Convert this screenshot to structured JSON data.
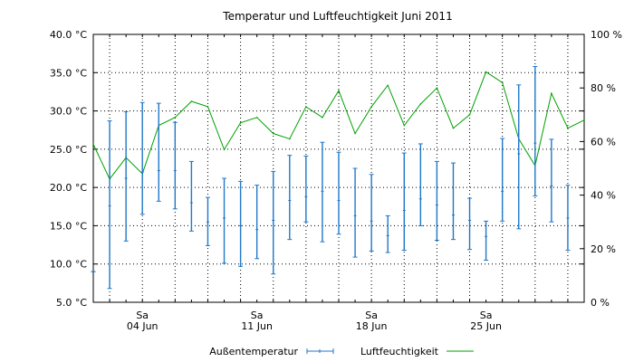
{
  "chart_data": {
    "type": "line",
    "title": "Temperatur und Luftfeuchtigkeit Juni 2011",
    "x": {
      "label": "",
      "first_day": 1,
      "last_day": 31,
      "weekday_ticks": [
        {
          "day": 4,
          "label": "Sa"
        },
        {
          "day": 11,
          "label": "Sa"
        },
        {
          "day": 18,
          "label": "Sa"
        },
        {
          "day": 25,
          "label": "Sa"
        }
      ],
      "date_ticks": [
        {
          "day": 4,
          "label": "04 Jun"
        },
        {
          "day": 11,
          "label": "11 Jun"
        },
        {
          "day": 18,
          "label": "18 Jun"
        },
        {
          "day": 25,
          "label": "25 Jun"
        }
      ]
    },
    "y_left": {
      "unit": "°C",
      "ylim": [
        5,
        40
      ],
      "ticks": [
        {
          "value": 5,
          "label": "5.0 °C"
        },
        {
          "value": 10,
          "label": "10.0 °C"
        },
        {
          "value": 15,
          "label": "15.0 °C"
        },
        {
          "value": 20,
          "label": "20.0 °C"
        },
        {
          "value": 25,
          "label": "25.0 °C"
        },
        {
          "value": 30,
          "label": "30.0 °C"
        },
        {
          "value": 35,
          "label": "35.0 °C"
        },
        {
          "value": 40,
          "label": "40.0 °C"
        }
      ]
    },
    "y_right": {
      "unit": "%",
      "ylim": [
        0,
        100
      ],
      "ticks": [
        {
          "value": 0,
          "label": "0 %"
        },
        {
          "value": 20,
          "label": "20 %"
        },
        {
          "value": 40,
          "label": "40 %"
        },
        {
          "value": 60,
          "label": "60 %"
        },
        {
          "value": 80,
          "label": "80 %"
        },
        {
          "value": 100,
          "label": "100 %"
        }
      ]
    },
    "grid": true,
    "legend_position": "bottom",
    "series": [
      {
        "name": "Außentemperatur",
        "type": "errorbar",
        "axis": "left",
        "color": "#1f78c8",
        "days": [
          1,
          2,
          3,
          4,
          5,
          6,
          7,
          8,
          9,
          10,
          11,
          12,
          13,
          14,
          15,
          16,
          17,
          18,
          19,
          20,
          21,
          22,
          23,
          24,
          25,
          26,
          27,
          28,
          29,
          30
        ],
        "min": [
          9.0,
          6.8,
          13.0,
          16.5,
          18.2,
          17.2,
          14.3,
          12.4,
          10.1,
          9.7,
          10.7,
          8.7,
          13.2,
          15.5,
          12.9,
          13.9,
          10.9,
          11.7,
          11.5,
          11.8,
          15.0,
          13.1,
          13.2,
          11.9,
          10.5,
          15.6,
          14.6,
          18.9,
          15.5,
          11.8
        ],
        "mean": [
          9.0,
          17.6,
          21.2,
          22.0,
          22.2,
          22.2,
          18.0,
          15.5,
          16.0,
          15.0,
          14.5,
          15.7,
          18.3,
          18.8,
          19.5,
          18.3,
          16.3,
          15.6,
          13.7,
          17.0,
          18.5,
          17.7,
          16.4,
          15.7,
          13.6,
          19.5,
          24.4,
          25.8,
          20.2,
          16.0
        ],
        "max": [
          9.0,
          28.7,
          29.9,
          31.1,
          31.0,
          28.5,
          23.4,
          18.7,
          21.2,
          20.8,
          20.3,
          22.1,
          24.2,
          24.1,
          25.9,
          24.6,
          22.5,
          21.7,
          16.3,
          24.5,
          25.7,
          23.4,
          23.2,
          18.6,
          15.6,
          26.4,
          33.4,
          35.8,
          26.3,
          20.3
        ]
      },
      {
        "name": "Luftfeuchtigkeit",
        "type": "line",
        "axis": "right",
        "color": "#00a000",
        "days": [
          1,
          2,
          3,
          4,
          5,
          6,
          7,
          8,
          9,
          10,
          11,
          12,
          13,
          14,
          15,
          16,
          17,
          18,
          19,
          20,
          21,
          22,
          23,
          24,
          25,
          26,
          27,
          28,
          29,
          30,
          31
        ],
        "values": [
          59,
          46,
          54,
          48,
          66,
          69,
          75,
          73,
          57,
          67,
          69,
          63,
          61,
          73,
          69,
          79,
          63,
          73,
          81,
          66,
          74,
          80,
          65,
          70,
          86,
          82,
          61,
          51,
          78,
          65,
          68
        ]
      }
    ]
  }
}
